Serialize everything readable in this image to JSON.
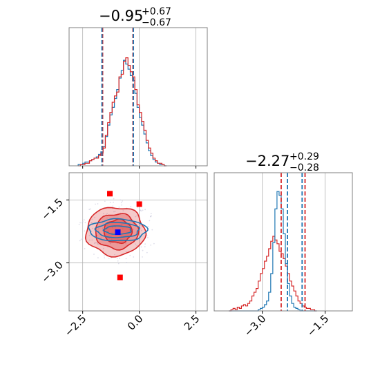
{
  "chart_data": {
    "type": "corner",
    "parameters": [
      {
        "index": 0,
        "title_value": "−0.95",
        "title_upper": "+0.67",
        "title_lower": "−0.67",
        "range": [
          -3.1,
          3.0
        ],
        "ticks": [
          -2.5,
          0.0,
          2.5
        ],
        "tick_labels": [
          "−2.5",
          "0.0",
          "2.5"
        ]
      },
      {
        "index": 1,
        "title_value": "−2.27",
        "title_upper": "+0.29",
        "title_lower": "−0.28",
        "range": [
          -4.15,
          -0.85
        ],
        "ticks": [
          -3.0,
          -1.5
        ],
        "tick_labels": [
          "−3.0",
          "−1.5"
        ]
      }
    ],
    "grid": true,
    "colors": {
      "red": "#d62728",
      "blue": "#1f77b4",
      "marker_red": "#ff0000",
      "marker_blue": "#0000ff",
      "frame": "#7f7f7f"
    },
    "series": [
      {
        "color": "red",
        "quantiles_p0": [
          -1.62,
          -0.95,
          -0.28
        ],
        "quantiles_p1": [
          -2.55,
          -2.27,
          -1.98
        ]
      },
      {
        "color": "blue",
        "quantiles_p0": [
          -1.65,
          -0.95,
          -0.26
        ],
        "quantiles_p1": [
          -2.4,
          -2.2,
          -2.05
        ]
      }
    ],
    "hist_p0": {
      "x_start": -2.7,
      "bin_width": 0.1,
      "red": [
        0.0,
        0.01,
        0.01,
        0.02,
        0.02,
        0.04,
        0.05,
        0.06,
        0.06,
        0.08,
        0.1,
        0.14,
        0.24,
        0.34,
        0.42,
        0.5,
        0.55,
        0.58,
        0.7,
        0.72,
        0.82,
        0.85,
        0.79,
        0.74,
        0.7,
        0.6,
        0.48,
        0.42,
        0.35,
        0.28,
        0.2,
        0.14,
        0.1,
        0.06,
        0.04,
        0.02,
        0.02,
        0.01,
        0.0
      ],
      "blue": [
        0.01,
        0.01,
        0.02,
        0.03,
        0.03,
        0.04,
        0.05,
        0.06,
        0.07,
        0.09,
        0.11,
        0.15,
        0.23,
        0.32,
        0.4,
        0.46,
        0.53,
        0.6,
        0.69,
        0.75,
        0.83,
        0.8,
        0.76,
        0.71,
        0.67,
        0.57,
        0.46,
        0.38,
        0.32,
        0.25,
        0.18,
        0.12,
        0.08,
        0.05,
        0.03,
        0.02,
        0.01,
        0.01,
        0.0
      ]
    },
    "hist_p1": {
      "x_start": -3.8,
      "bin_width": 0.05,
      "red": [
        0.0,
        0.01,
        0.02,
        0.01,
        0.03,
        0.02,
        0.04,
        0.05,
        0.04,
        0.06,
        0.08,
        0.12,
        0.15,
        0.18,
        0.24,
        0.3,
        0.34,
        0.4,
        0.44,
        0.5,
        0.56,
        0.6,
        0.57,
        0.54,
        0.48,
        0.46,
        0.42,
        0.36,
        0.3,
        0.24,
        0.2,
        0.16,
        0.12,
        0.08,
        0.06,
        0.04,
        0.03,
        0.02,
        0.02,
        0.01,
        0.01,
        0.0
      ],
      "blue": [
        0.0,
        0.0,
        0.0,
        0.0,
        0.0,
        0.0,
        0.0,
        0.0,
        0.0,
        0.0,
        0.0,
        0.0,
        0.0,
        0.0,
        0.01,
        0.02,
        0.03,
        0.05,
        0.08,
        0.15,
        0.3,
        0.55,
        0.82,
        0.96,
        0.93,
        0.82,
        0.62,
        0.38,
        0.22,
        0.12,
        0.06,
        0.03,
        0.02,
        0.01,
        0.0,
        0.0,
        0.0,
        0.0,
        0.0,
        0.0,
        0.0,
        0.0
      ]
    },
    "scatter_2d": {
      "markers": [
        {
          "color": "marker_red",
          "x": -1.3,
          "y": -1.35
        },
        {
          "color": "marker_red",
          "x": 0.0,
          "y": -1.6
        },
        {
          "color": "marker_red",
          "x": -0.85,
          "y": -3.35
        },
        {
          "color": "marker_blue",
          "x": -0.95,
          "y": -2.27
        }
      ],
      "contours": [
        {
          "color": "red",
          "cx": -1.05,
          "cy": -2.25,
          "rx": 1.3,
          "ry": 0.58,
          "fill_opacity": 0.45
        },
        {
          "color": "red",
          "cx": -1.0,
          "cy": -2.25,
          "rx": 0.95,
          "ry": 0.42,
          "fill_opacity": 0.55
        },
        {
          "color": "red",
          "cx": -0.95,
          "cy": -2.25,
          "rx": 0.62,
          "ry": 0.28,
          "fill_opacity": 0.7
        },
        {
          "color": "blue",
          "cx": -0.95,
          "cy": -2.22,
          "rx": 1.28,
          "ry": 0.26,
          "fill_opacity": 0.0
        },
        {
          "color": "blue",
          "cx": -0.95,
          "cy": -2.22,
          "rx": 0.95,
          "ry": 0.18,
          "fill_opacity": 0.0
        },
        {
          "color": "blue",
          "cx": -0.95,
          "cy": -2.22,
          "rx": 0.6,
          "ry": 0.1,
          "fill_opacity": 0.0
        }
      ]
    }
  }
}
